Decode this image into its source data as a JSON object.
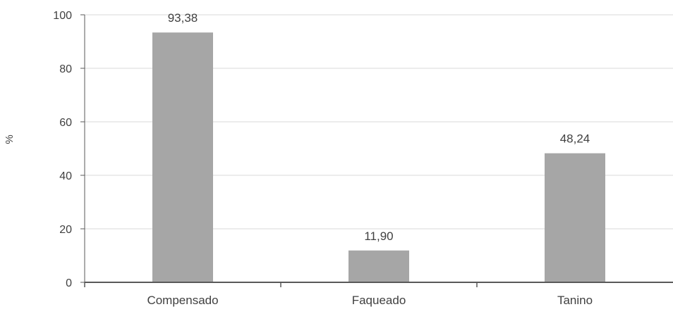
{
  "chart_data": {
    "type": "bar",
    "categories": [
      "Compensado",
      "Faqueado",
      "Tanino"
    ],
    "values": [
      93.38,
      11.9,
      48.24
    ],
    "data_labels": [
      "93,38",
      "11,90",
      "48,24"
    ],
    "ylabel": "%",
    "ylim": [
      0,
      100
    ],
    "yticks": [
      0,
      20,
      40,
      60,
      80,
      100
    ],
    "grid": true,
    "legend": "none",
    "colors": {
      "bar": "#a6a6a6",
      "grid": "#d9d9d9",
      "axis": "#595959",
      "text": "#404040"
    }
  }
}
